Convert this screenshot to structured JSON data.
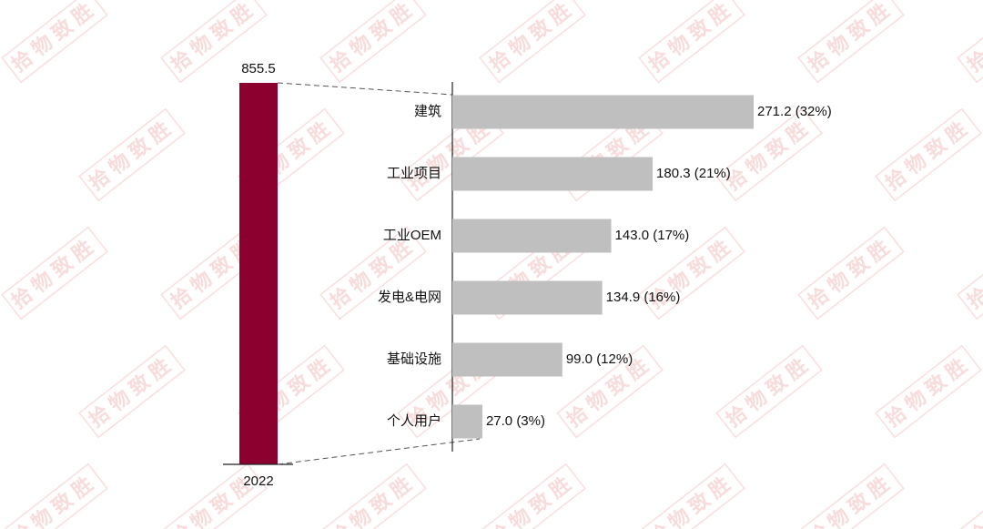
{
  "watermark": "拾物致胜",
  "chart_data": [
    {
      "type": "bar",
      "categories": [
        "2022"
      ],
      "values": [
        855.5
      ],
      "color": "#8c0030"
    },
    {
      "type": "barh",
      "categories": [
        "建筑",
        "工业项目",
        "工业OEM",
        "发电&电网",
        "基础设施",
        "个人用户"
      ],
      "values": [
        271.2,
        180.3,
        143.0,
        134.9,
        99.0,
        27.0
      ],
      "value_labels": [
        "271.2 (32%)",
        "180.3 (21%)",
        "143.0 (17%)",
        "134.9 (16%)",
        "99.0 (12%)",
        "27.0 (3%)"
      ],
      "color": "#bfbfbf"
    }
  ]
}
